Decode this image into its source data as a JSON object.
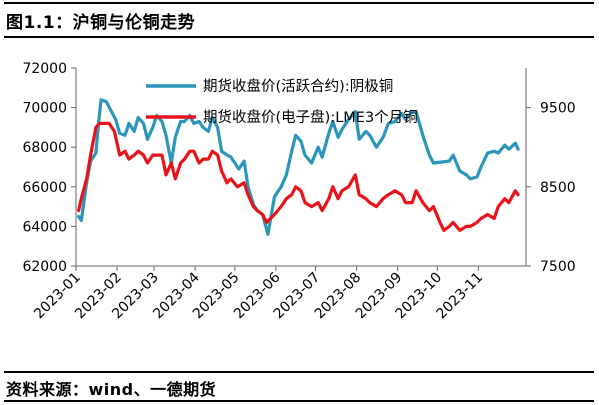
{
  "figure": {
    "title": "图1.1：沪铜与伦铜走势",
    "source": "资料来源：wind、一德期货"
  },
  "colors": {
    "series_1": "#2b95bb",
    "series_2": "#e8141a",
    "axis": "#666666",
    "text": "#000000"
  },
  "chart_data": {
    "type": "line",
    "grid": false,
    "legend_position": "top-right",
    "y_left": {
      "ticks": [
        62000,
        64000,
        66000,
        68000,
        70000,
        72000
      ],
      "lim": [
        62000,
        72000
      ]
    },
    "y_right": {
      "ticks": [
        7500,
        8500,
        9500
      ],
      "lim": [
        7500,
        10000
      ]
    },
    "x_ticks": [
      "2023-01",
      "2023-02",
      "2023-03",
      "2023-04",
      "2023-05",
      "2023-06",
      "2023-07",
      "2023-08",
      "2023-09",
      "2023-10",
      "2023-11"
    ],
    "x_range": [
      "2023-01-01",
      "2023-12-07"
    ],
    "series": [
      {
        "name": "期货收盘价(活跃合约):阴极铜",
        "axis": "left",
        "points": [
          [
            "2023-01-03",
            64500
          ],
          [
            "2023-01-05",
            64300
          ],
          [
            "2023-01-09",
            66200
          ],
          [
            "2023-01-12",
            67300
          ],
          [
            "2023-01-16",
            67700
          ],
          [
            "2023-01-18",
            69200
          ],
          [
            "2023-01-20",
            70400
          ],
          [
            "2023-01-24",
            70300
          ],
          [
            "2023-01-27",
            69900
          ],
          [
            "2023-01-31",
            69400
          ],
          [
            "2023-02-03",
            68700
          ],
          [
            "2023-02-07",
            68600
          ],
          [
            "2023-02-10",
            69200
          ],
          [
            "2023-02-14",
            68800
          ],
          [
            "2023-02-17",
            69500
          ],
          [
            "2023-02-21",
            69200
          ],
          [
            "2023-02-24",
            68400
          ],
          [
            "2023-02-28",
            69000
          ],
          [
            "2023-03-03",
            69600
          ],
          [
            "2023-03-07",
            69300
          ],
          [
            "2023-03-10",
            68600
          ],
          [
            "2023-03-14",
            67200
          ],
          [
            "2023-03-17",
            68500
          ],
          [
            "2023-03-21",
            69300
          ],
          [
            "2023-03-24",
            69300
          ],
          [
            "2023-03-28",
            69600
          ],
          [
            "2023-03-31",
            69200
          ],
          [
            "2023-04-04",
            69300
          ],
          [
            "2023-04-07",
            69000
          ],
          [
            "2023-04-11",
            68800
          ],
          [
            "2023-04-14",
            69500
          ],
          [
            "2023-04-18",
            69000
          ],
          [
            "2023-04-21",
            67800
          ],
          [
            "2023-04-25",
            67600
          ],
          [
            "2023-04-28",
            67500
          ],
          [
            "2023-05-04",
            66900
          ],
          [
            "2023-05-08",
            67300
          ],
          [
            "2023-05-11",
            66000
          ],
          [
            "2023-05-15",
            65100
          ],
          [
            "2023-05-18",
            64800
          ],
          [
            "2023-05-22",
            64600
          ],
          [
            "2023-05-26",
            63600
          ],
          [
            "2023-05-31",
            65500
          ],
          [
            "2023-06-05",
            66000
          ],
          [
            "2023-06-09",
            66600
          ],
          [
            "2023-06-13",
            67800
          ],
          [
            "2023-06-16",
            68600
          ],
          [
            "2023-06-20",
            68300
          ],
          [
            "2023-06-23",
            67600
          ],
          [
            "2023-06-28",
            67200
          ],
          [
            "2023-07-03",
            68000
          ],
          [
            "2023-07-06",
            67500
          ],
          [
            "2023-07-11",
            68700
          ],
          [
            "2023-07-14",
            69300
          ],
          [
            "2023-07-18",
            68500
          ],
          [
            "2023-07-21",
            68900
          ],
          [
            "2023-07-26",
            69400
          ],
          [
            "2023-07-31",
            69800
          ],
          [
            "2023-08-03",
            68400
          ],
          [
            "2023-08-08",
            68800
          ],
          [
            "2023-08-11",
            68600
          ],
          [
            "2023-08-16",
            68000
          ],
          [
            "2023-08-21",
            68500
          ],
          [
            "2023-08-25",
            69200
          ],
          [
            "2023-08-30",
            69300
          ],
          [
            "2023-09-04",
            69700
          ],
          [
            "2023-09-07",
            69400
          ],
          [
            "2023-09-12",
            69800
          ],
          [
            "2023-09-15",
            69800
          ],
          [
            "2023-09-20",
            68600
          ],
          [
            "2023-09-25",
            67600
          ],
          [
            "2023-09-28",
            67200
          ],
          [
            "2023-10-10",
            67300
          ],
          [
            "2023-10-13",
            67600
          ],
          [
            "2023-10-18",
            66800
          ],
          [
            "2023-10-23",
            66600
          ],
          [
            "2023-10-26",
            66400
          ],
          [
            "2023-10-31",
            66500
          ],
          [
            "2023-11-03",
            67000
          ],
          [
            "2023-11-08",
            67700
          ],
          [
            "2023-11-13",
            67800
          ],
          [
            "2023-11-16",
            67700
          ],
          [
            "2023-11-21",
            68100
          ],
          [
            "2023-11-24",
            67900
          ],
          [
            "2023-11-29",
            68200
          ],
          [
            "2023-12-01",
            67900
          ]
        ]
      },
      {
        "name": "期货收盘价(电子盘):LME3个月铜",
        "axis": "right",
        "points": [
          [
            "2023-01-03",
            8200
          ],
          [
            "2023-01-05",
            8350
          ],
          [
            "2023-01-09",
            8600
          ],
          [
            "2023-01-12",
            8900
          ],
          [
            "2023-01-16",
            9250
          ],
          [
            "2023-01-19",
            9300
          ],
          [
            "2023-01-23",
            9300
          ],
          [
            "2023-01-26",
            9300
          ],
          [
            "2023-01-30",
            9200
          ],
          [
            "2023-02-03",
            8900
          ],
          [
            "2023-02-07",
            8950
          ],
          [
            "2023-02-10",
            8850
          ],
          [
            "2023-02-14",
            8900
          ],
          [
            "2023-02-17",
            8950
          ],
          [
            "2023-02-21",
            8900
          ],
          [
            "2023-02-24",
            8800
          ],
          [
            "2023-02-28",
            8900
          ],
          [
            "2023-03-03",
            8900
          ],
          [
            "2023-03-07",
            8900
          ],
          [
            "2023-03-10",
            8650
          ],
          [
            "2023-03-14",
            8800
          ],
          [
            "2023-03-17",
            8600
          ],
          [
            "2023-03-21",
            8800
          ],
          [
            "2023-03-24",
            8850
          ],
          [
            "2023-03-28",
            8950
          ],
          [
            "2023-03-31",
            8950
          ],
          [
            "2023-04-04",
            8800
          ],
          [
            "2023-04-07",
            8850
          ],
          [
            "2023-04-11",
            8850
          ],
          [
            "2023-04-14",
            8950
          ],
          [
            "2023-04-18",
            8900
          ],
          [
            "2023-04-21",
            8700
          ],
          [
            "2023-04-25",
            8550
          ],
          [
            "2023-04-28",
            8600
          ],
          [
            "2023-05-03",
            8500
          ],
          [
            "2023-05-08",
            8550
          ],
          [
            "2023-05-11",
            8400
          ],
          [
            "2023-05-15",
            8250
          ],
          [
            "2023-05-18",
            8200
          ],
          [
            "2023-05-22",
            8150
          ],
          [
            "2023-05-25",
            8050
          ],
          [
            "2023-05-31",
            8150
          ],
          [
            "2023-06-05",
            8250
          ],
          [
            "2023-06-09",
            8350
          ],
          [
            "2023-06-13",
            8400
          ],
          [
            "2023-06-16",
            8500
          ],
          [
            "2023-06-20",
            8450
          ],
          [
            "2023-06-23",
            8300
          ],
          [
            "2023-06-28",
            8250
          ],
          [
            "2023-07-03",
            8300
          ],
          [
            "2023-07-06",
            8200
          ],
          [
            "2023-07-11",
            8350
          ],
          [
            "2023-07-14",
            8500
          ],
          [
            "2023-07-18",
            8350
          ],
          [
            "2023-07-21",
            8450
          ],
          [
            "2023-07-26",
            8500
          ],
          [
            "2023-07-31",
            8650
          ],
          [
            "2023-08-03",
            8400
          ],
          [
            "2023-08-08",
            8350
          ],
          [
            "2023-08-11",
            8300
          ],
          [
            "2023-08-16",
            8250
          ],
          [
            "2023-08-21",
            8350
          ],
          [
            "2023-08-25",
            8400
          ],
          [
            "2023-08-30",
            8450
          ],
          [
            "2023-09-04",
            8400
          ],
          [
            "2023-09-07",
            8300
          ],
          [
            "2023-09-12",
            8300
          ],
          [
            "2023-09-15",
            8450
          ],
          [
            "2023-09-20",
            8300
          ],
          [
            "2023-09-25",
            8200
          ],
          [
            "2023-09-28",
            8250
          ],
          [
            "2023-10-03",
            8050
          ],
          [
            "2023-10-06",
            7950
          ],
          [
            "2023-10-10",
            8000
          ],
          [
            "2023-10-13",
            8050
          ],
          [
            "2023-10-18",
            7950
          ],
          [
            "2023-10-23",
            8000
          ],
          [
            "2023-10-26",
            8000
          ],
          [
            "2023-10-31",
            8050
          ],
          [
            "2023-11-03",
            8100
          ],
          [
            "2023-11-08",
            8150
          ],
          [
            "2023-11-13",
            8100
          ],
          [
            "2023-11-16",
            8250
          ],
          [
            "2023-11-21",
            8350
          ],
          [
            "2023-11-24",
            8300
          ],
          [
            "2023-11-29",
            8450
          ],
          [
            "2023-12-01",
            8400
          ]
        ]
      }
    ]
  }
}
